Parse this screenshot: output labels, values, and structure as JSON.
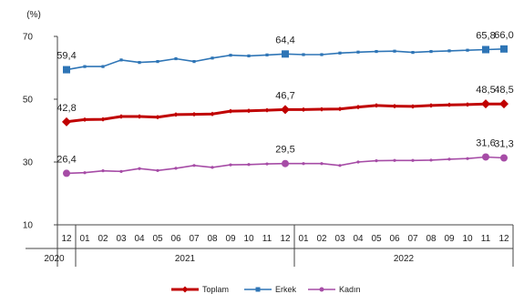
{
  "chart_data": {
    "type": "line",
    "unit_label": "(%)",
    "ylim": [
      10,
      70
    ],
    "y_ticks": [
      "10",
      "30",
      "50",
      "70"
    ],
    "grid": false,
    "legend_position": "bottom",
    "x_month_labels": [
      "12",
      "01",
      "02",
      "03",
      "04",
      "05",
      "06",
      "07",
      "08",
      "09",
      "10",
      "11",
      "12",
      "01",
      "02",
      "03",
      "04",
      "05",
      "06",
      "07",
      "08",
      "09",
      "10",
      "11",
      "12"
    ],
    "year_groups": [
      {
        "label": "2020",
        "start": 0,
        "end": 0
      },
      {
        "label": "2021",
        "start": 1,
        "end": 12
      },
      {
        "label": "2022",
        "start": 13,
        "end": 24
      }
    ],
    "series": [
      {
        "name": "Toplam",
        "color": "#c00000",
        "marker": "diamond",
        "values": [
          42.8,
          43.5,
          43.6,
          44.5,
          44.5,
          44.3,
          45.1,
          45.2,
          45.3,
          46.2,
          46.3,
          46.5,
          46.7,
          46.7,
          46.8,
          46.9,
          47.5,
          48.0,
          47.8,
          47.7,
          48.0,
          48.2,
          48.3,
          48.5,
          48.5
        ],
        "labeled_points": [
          {
            "index": 0,
            "text": "42,8"
          },
          {
            "index": 12,
            "text": "46,7"
          },
          {
            "index": 23,
            "text": "48,5"
          },
          {
            "index": 24,
            "text": "48,5"
          }
        ]
      },
      {
        "name": "Erkek",
        "color": "#2e75b6",
        "marker": "square",
        "values": [
          59.4,
          60.4,
          60.4,
          62.5,
          61.7,
          62.0,
          62.9,
          62.0,
          63.1,
          64.0,
          63.8,
          64.1,
          64.4,
          64.2,
          64.2,
          64.7,
          65.0,
          65.2,
          65.3,
          64.9,
          65.2,
          65.4,
          65.6,
          65.8,
          66.0
        ],
        "labeled_points": [
          {
            "index": 0,
            "text": "59,4"
          },
          {
            "index": 12,
            "text": "64,4"
          },
          {
            "index": 23,
            "text": "65,8"
          },
          {
            "index": 24,
            "text": "66,0"
          }
        ]
      },
      {
        "name": "Kadın",
        "color": "#a64ca6",
        "marker": "circle",
        "values": [
          26.4,
          26.6,
          27.2,
          27.0,
          27.9,
          27.3,
          28.0,
          28.9,
          28.3,
          29.1,
          29.2,
          29.4,
          29.5,
          29.5,
          29.5,
          28.9,
          30.0,
          30.4,
          30.5,
          30.5,
          30.6,
          30.9,
          31.1,
          31.6,
          31.3
        ],
        "labeled_points": [
          {
            "index": 0,
            "text": "26,4"
          },
          {
            "index": 12,
            "text": "29,5"
          },
          {
            "index": 23,
            "text": "31,6"
          },
          {
            "index": 24,
            "text": "31,3"
          }
        ]
      }
    ]
  }
}
